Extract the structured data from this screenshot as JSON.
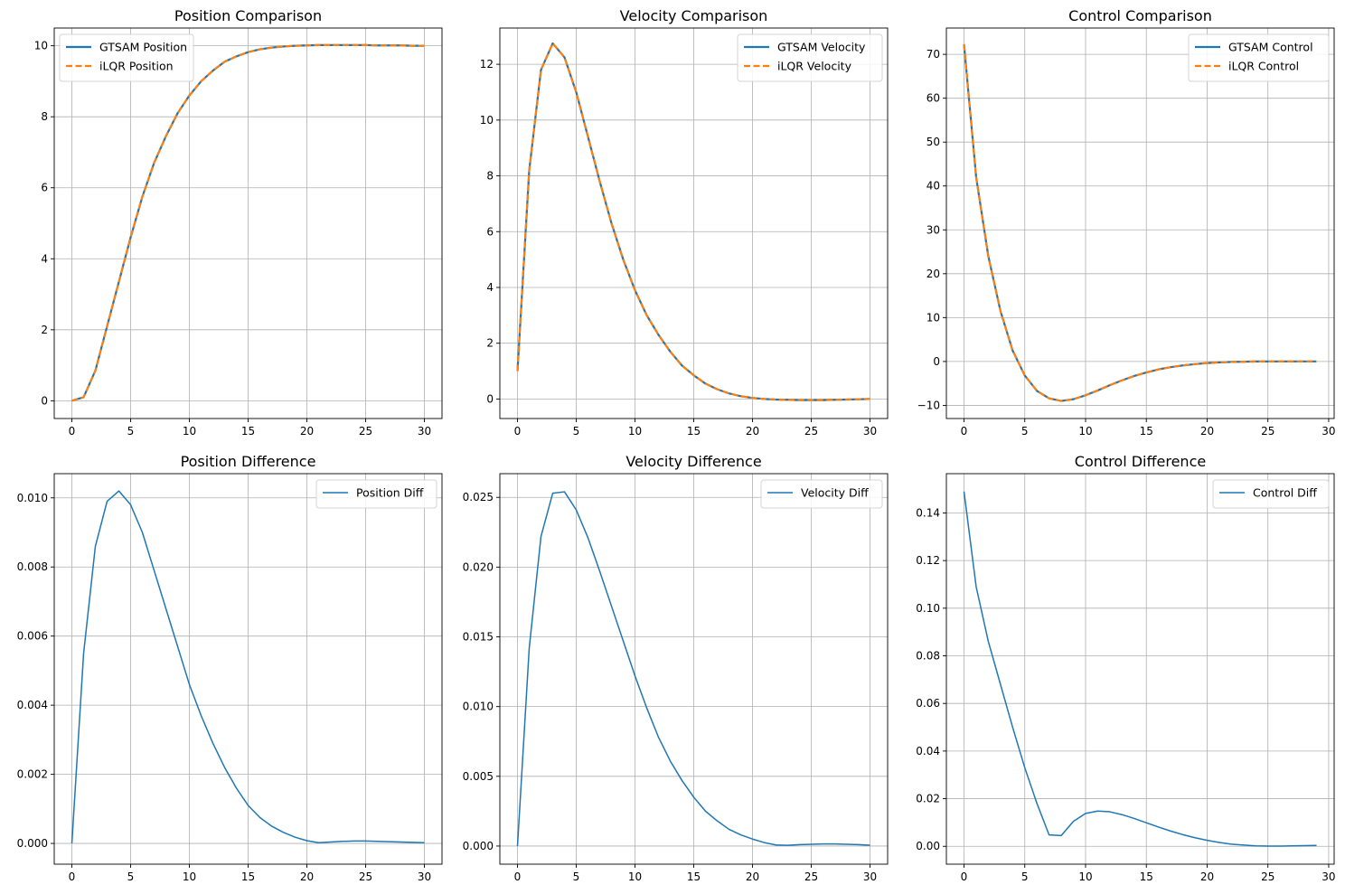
{
  "colors": {
    "primary": "#1f77b4",
    "secondary": "#ff7f0e",
    "grid": "#b0b0b0",
    "axis": "#000000"
  },
  "chart_data": [
    {
      "type": "line",
      "title": "Position Comparison",
      "xlim": [
        -1.5,
        31.5
      ],
      "ylim": [
        -0.5,
        10.5
      ],
      "xticks": [
        "0",
        "5",
        "10",
        "15",
        "20",
        "25",
        "30"
      ],
      "yticks": [
        "0",
        "2",
        "4",
        "6",
        "8",
        "10"
      ],
      "grid": true,
      "legend_placement": "upper-left",
      "x": [
        0,
        1,
        2,
        3,
        4,
        5,
        6,
        7,
        8,
        9,
        10,
        11,
        12,
        13,
        14,
        15,
        16,
        17,
        18,
        19,
        20,
        21,
        22,
        23,
        24,
        25,
        26,
        27,
        28,
        29,
        30
      ],
      "series": [
        {
          "name": "GTSAM Position",
          "style": "solid",
          "color": "#1f77b4",
          "values": [
            0.0,
            0.1,
            0.85,
            2.1,
            3.35,
            4.6,
            5.75,
            6.7,
            7.45,
            8.1,
            8.6,
            9.0,
            9.3,
            9.55,
            9.7,
            9.82,
            9.9,
            9.95,
            9.98,
            10.0,
            10.01,
            10.02,
            10.02,
            10.02,
            10.02,
            10.02,
            10.01,
            10.01,
            10.01,
            10.0,
            10.0
          ]
        },
        {
          "name": "iLQR Position",
          "style": "dashed",
          "color": "#ff7f0e",
          "values": [
            0.0,
            0.1,
            0.85,
            2.1,
            3.35,
            4.6,
            5.75,
            6.7,
            7.45,
            8.1,
            8.6,
            9.0,
            9.3,
            9.55,
            9.7,
            9.82,
            9.9,
            9.95,
            9.98,
            10.0,
            10.01,
            10.02,
            10.02,
            10.02,
            10.02,
            10.02,
            10.01,
            10.01,
            10.01,
            10.0,
            10.0
          ]
        }
      ]
    },
    {
      "type": "line",
      "title": "Velocity Comparison",
      "xlim": [
        -1.5,
        31.5
      ],
      "ylim": [
        -0.7,
        13.3
      ],
      "xticks": [
        "0",
        "5",
        "10",
        "15",
        "20",
        "25",
        "30"
      ],
      "yticks": [
        "0",
        "2",
        "4",
        "6",
        "8",
        "10",
        "12"
      ],
      "grid": true,
      "legend_placement": "upper-right",
      "x": [
        0,
        1,
        2,
        3,
        4,
        5,
        6,
        7,
        8,
        9,
        10,
        11,
        12,
        13,
        14,
        15,
        16,
        17,
        18,
        19,
        20,
        21,
        22,
        23,
        24,
        25,
        26,
        27,
        28,
        29,
        30
      ],
      "series": [
        {
          "name": "GTSAM Velocity",
          "style": "solid",
          "color": "#1f77b4",
          "values": [
            1.0,
            8.2,
            11.8,
            12.75,
            12.25,
            11.0,
            9.4,
            7.8,
            6.3,
            5.0,
            3.9,
            3.0,
            2.3,
            1.7,
            1.2,
            0.85,
            0.55,
            0.35,
            0.2,
            0.1,
            0.04,
            0.0,
            -0.02,
            -0.03,
            -0.04,
            -0.04,
            -0.04,
            -0.03,
            -0.02,
            -0.01,
            0.0
          ]
        },
        {
          "name": "iLQR Velocity",
          "style": "dashed",
          "color": "#ff7f0e",
          "values": [
            1.0,
            8.2,
            11.8,
            12.75,
            12.25,
            11.0,
            9.4,
            7.8,
            6.3,
            5.0,
            3.9,
            3.0,
            2.3,
            1.7,
            1.2,
            0.85,
            0.55,
            0.35,
            0.2,
            0.1,
            0.04,
            0.0,
            -0.02,
            -0.03,
            -0.04,
            -0.04,
            -0.04,
            -0.03,
            -0.02,
            -0.01,
            0.0
          ]
        }
      ]
    },
    {
      "type": "line",
      "title": "Control Comparison",
      "xlim": [
        -1.45,
        30.45
      ],
      "ylim": [
        -13.0,
        76.0
      ],
      "xticks": [
        "0",
        "5",
        "10",
        "15",
        "20",
        "25",
        "30"
      ],
      "yticks": [
        "−10",
        "0",
        "10",
        "20",
        "30",
        "40",
        "50",
        "60",
        "70"
      ],
      "grid": true,
      "legend_placement": "upper-right",
      "x": [
        0,
        1,
        2,
        3,
        4,
        5,
        6,
        7,
        8,
        9,
        10,
        11,
        12,
        13,
        14,
        15,
        16,
        17,
        18,
        19,
        20,
        21,
        22,
        23,
        24,
        25,
        26,
        27,
        28,
        29
      ],
      "series": [
        {
          "name": "GTSAM Control",
          "style": "solid",
          "color": "#1f77b4",
          "values": [
            72.3,
            42.0,
            24.0,
            11.5,
            2.5,
            -3.2,
            -6.7,
            -8.4,
            -9.0,
            -8.6,
            -7.7,
            -6.6,
            -5.4,
            -4.3,
            -3.3,
            -2.5,
            -1.8,
            -1.3,
            -0.9,
            -0.6,
            -0.35,
            -0.2,
            -0.1,
            -0.05,
            0.0,
            0.0,
            0.02,
            0.02,
            0.02,
            0.02
          ]
        },
        {
          "name": "iLQR Control",
          "style": "dashed",
          "color": "#ff7f0e",
          "values": [
            72.3,
            42.0,
            24.0,
            11.5,
            2.5,
            -3.2,
            -6.7,
            -8.4,
            -9.0,
            -8.6,
            -7.7,
            -6.6,
            -5.4,
            -4.3,
            -3.3,
            -2.5,
            -1.8,
            -1.3,
            -0.9,
            -0.6,
            -0.35,
            -0.2,
            -0.1,
            -0.05,
            0.0,
            0.0,
            0.02,
            0.02,
            0.02,
            0.02
          ]
        }
      ]
    },
    {
      "type": "line",
      "title": "Position Difference",
      "xlim": [
        -1.5,
        31.5
      ],
      "ylim": [
        -0.0006,
        0.0107
      ],
      "xticks": [
        "0",
        "5",
        "10",
        "15",
        "20",
        "25",
        "30"
      ],
      "yticks": [
        "0.000",
        "0.002",
        "0.004",
        "0.006",
        "0.008",
        "0.010"
      ],
      "grid": true,
      "legend_placement": "upper-right",
      "x": [
        0,
        1,
        2,
        3,
        4,
        5,
        6,
        7,
        8,
        9,
        10,
        11,
        12,
        13,
        14,
        15,
        16,
        17,
        18,
        19,
        20,
        21,
        22,
        23,
        24,
        25,
        26,
        27,
        28,
        29,
        30
      ],
      "series": [
        {
          "name": "Position Diff",
          "style": "solid",
          "color": "#1f77b4",
          "values": [
            0.0,
            0.0055,
            0.0086,
            0.0099,
            0.0102,
            0.0098,
            0.009,
            0.0079,
            0.0068,
            0.0057,
            0.0046,
            0.0037,
            0.0029,
            0.0022,
            0.0016,
            0.0011,
            0.00075,
            0.0005,
            0.00032,
            0.00018,
            8e-05,
            2e-05,
            4e-05,
            6e-05,
            7e-05,
            7e-05,
            6e-05,
            5e-05,
            4e-05,
            3e-05,
            2e-05
          ]
        }
      ]
    },
    {
      "type": "line",
      "title": "Velocity Difference",
      "xlim": [
        -1.5,
        31.5
      ],
      "ylim": [
        -0.0013,
        0.0267
      ],
      "xticks": [
        "0",
        "5",
        "10",
        "15",
        "20",
        "25",
        "30"
      ],
      "yticks": [
        "0.000",
        "0.005",
        "0.010",
        "0.015",
        "0.020",
        "0.025"
      ],
      "grid": true,
      "legend_placement": "upper-right",
      "x": [
        0,
        1,
        2,
        3,
        4,
        5,
        6,
        7,
        8,
        9,
        10,
        11,
        12,
        13,
        14,
        15,
        16,
        17,
        18,
        19,
        20,
        21,
        22,
        23,
        24,
        25,
        26,
        27,
        28,
        29,
        30
      ],
      "series": [
        {
          "name": "Velocity Diff",
          "style": "solid",
          "color": "#1f77b4",
          "values": [
            0.0,
            0.0142,
            0.0222,
            0.0253,
            0.0254,
            0.0241,
            0.0221,
            0.0197,
            0.0172,
            0.0147,
            0.0122,
            0.0099,
            0.0078,
            0.0061,
            0.0047,
            0.0035,
            0.0025,
            0.0018,
            0.0012,
            0.0008,
            0.0005,
            0.00025,
            8e-05,
            5e-05,
            0.0001,
            0.00013,
            0.00015,
            0.00015,
            0.00013,
            0.0001,
            6e-05
          ]
        }
      ]
    },
    {
      "type": "line",
      "title": "Control Difference",
      "xlim": [
        -1.45,
        30.45
      ],
      "ylim": [
        -0.0075,
        0.1565
      ],
      "xticks": [
        "0",
        "5",
        "10",
        "15",
        "20",
        "25",
        "30"
      ],
      "yticks": [
        "0.00",
        "0.02",
        "0.04",
        "0.06",
        "0.08",
        "0.10",
        "0.12",
        "0.14"
      ],
      "grid": true,
      "legend_placement": "upper-right",
      "x": [
        0,
        1,
        2,
        3,
        4,
        5,
        6,
        7,
        8,
        9,
        10,
        11,
        12,
        13,
        14,
        15,
        16,
        17,
        18,
        19,
        20,
        21,
        22,
        23,
        24,
        25,
        26,
        27,
        28,
        29
      ],
      "series": [
        {
          "name": "Control Diff",
          "style": "solid",
          "color": "#1f77b4",
          "values": [
            0.149,
            0.109,
            0.086,
            0.068,
            0.05,
            0.033,
            0.018,
            0.0048,
            0.0045,
            0.0105,
            0.0138,
            0.0148,
            0.0145,
            0.0133,
            0.0117,
            0.0099,
            0.0081,
            0.0064,
            0.0049,
            0.0036,
            0.0025,
            0.0016,
            0.0009,
            0.0005,
            0.0002,
            0.0001,
            0.0001,
            0.0002,
            0.0003,
            0.0004
          ]
        }
      ]
    }
  ]
}
